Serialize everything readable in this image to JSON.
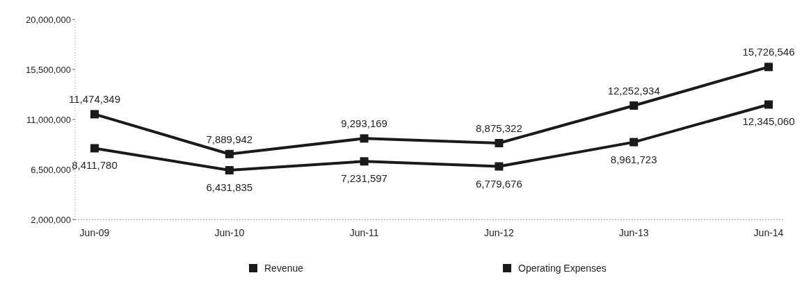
{
  "chart_data": {
    "type": "line",
    "categories": [
      "Jun-09",
      "Jun-10",
      "Jun-11",
      "Jun-12",
      "Jun-13",
      "Jun-14"
    ],
    "series": [
      {
        "name": "Revenue",
        "color": "#1a1a1a",
        "values": [
          11474349,
          7889942,
          9293169,
          8875322,
          12252934,
          15726546
        ],
        "value_labels": [
          "11,474,349",
          "7,889,942",
          "9,293,169",
          "8,875,322",
          "12,252,934",
          "15,726,546"
        ]
      },
      {
        "name": "Operating Expenses",
        "color": "#1a1a1a",
        "values": [
          8411780,
          6431835,
          7231597,
          6779676,
          8961723,
          12345060
        ],
        "value_labels": [
          "8,411,780",
          "6,431,835",
          "7,231,597",
          "6,779,676",
          "8,961,723",
          "12,345,060"
        ]
      }
    ],
    "ylim": [
      2000000,
      20000000
    ],
    "yticks": [
      {
        "value": 2000000,
        "label": "2,000,000"
      },
      {
        "value": 6500000,
        "label": "6,500,000"
      },
      {
        "value": 11000000,
        "label": "11,000,000"
      },
      {
        "value": 15500000,
        "label": "15,500,000"
      },
      {
        "value": 20000000,
        "label": "20,000,000"
      }
    ],
    "grid": false,
    "legend": "bottom",
    "marker": "square",
    "line_style": "solid"
  }
}
